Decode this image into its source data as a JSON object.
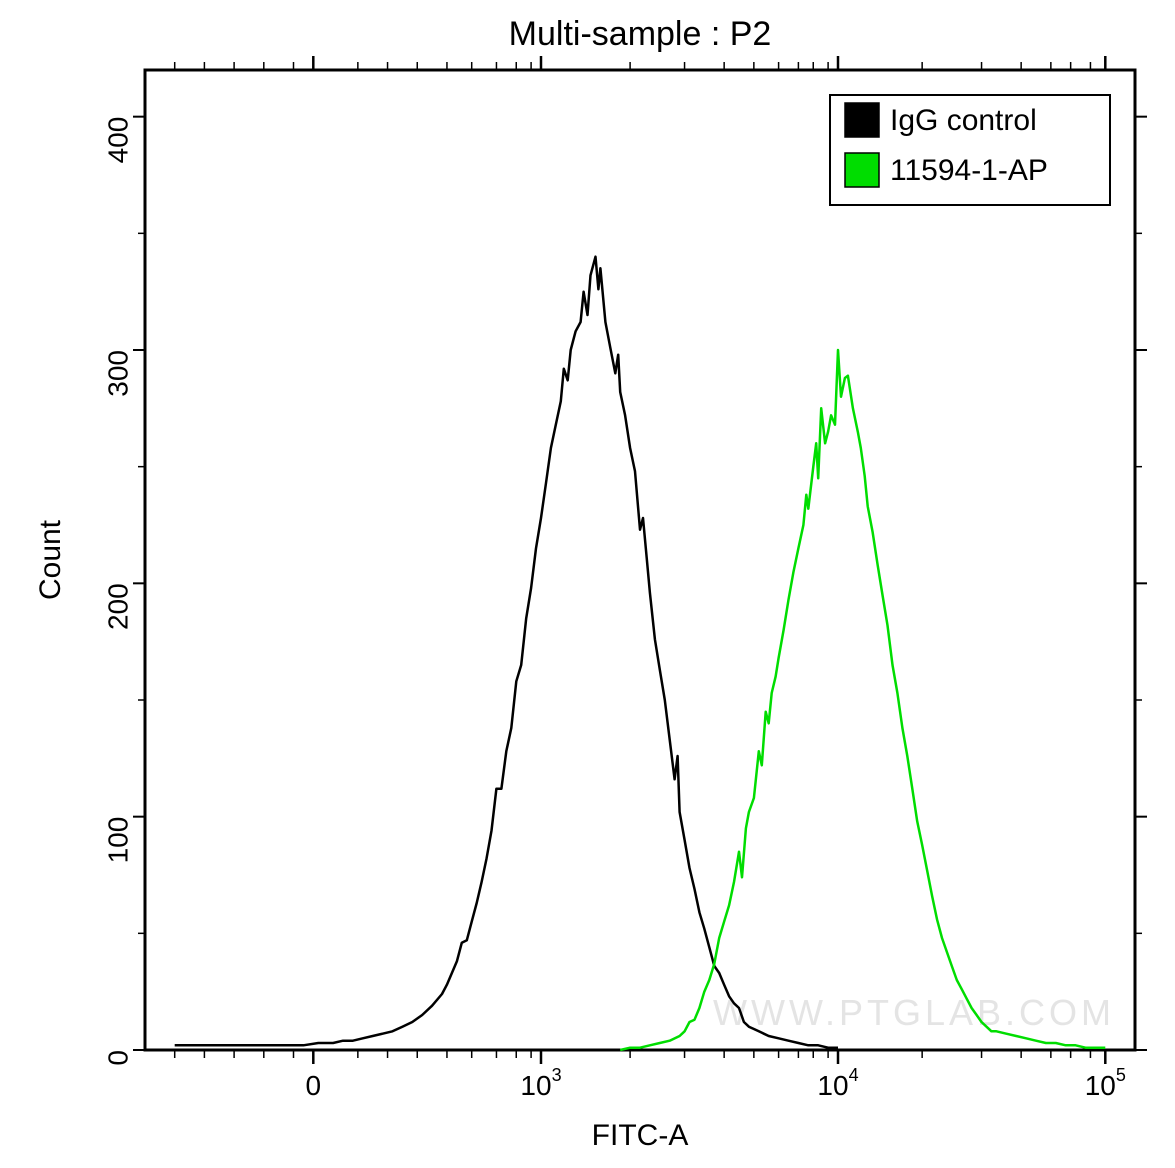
{
  "chart": {
    "type": "histogram-overlay",
    "title": "Multi-sample : P2",
    "title_fontsize": 34,
    "title_color": "#000000",
    "background_color": "#ffffff",
    "plot_border_color": "#000000",
    "plot_border_width": 3,
    "x_axis": {
      "label": "FITC-A",
      "label_fontsize": 30,
      "scale": "biexponential-log",
      "ticks": [
        {
          "value": 0,
          "label": "0",
          "pos": 0.17
        },
        {
          "value": 1000,
          "label": "10",
          "exp": "3",
          "pos": 0.4
        },
        {
          "value": 10000,
          "label": "10",
          "exp": "4",
          "pos": 0.7
        },
        {
          "value": 100000,
          "label": "10",
          "exp": "5",
          "pos": 0.97
        }
      ],
      "minor_ticks_positions": [
        0.03,
        0.06,
        0.09,
        0.12,
        0.15,
        0.215,
        0.245,
        0.275,
        0.305,
        0.33,
        0.355,
        0.375,
        0.39,
        0.49,
        0.545,
        0.585,
        0.615,
        0.64,
        0.66,
        0.675,
        0.69,
        0.785,
        0.845,
        0.885,
        0.915,
        0.935,
        0.955
      ]
    },
    "y_axis": {
      "label": "Count",
      "label_fontsize": 30,
      "scale": "linear",
      "min": 0,
      "max": 420,
      "tick_step": 100,
      "ticks": [
        {
          "value": 0,
          "label": "0"
        },
        {
          "value": 100,
          "label": "100"
        },
        {
          "value": 200,
          "label": "200"
        },
        {
          "value": 300,
          "label": "300"
        },
        {
          "value": 400,
          "label": "400"
        }
      ]
    },
    "series": [
      {
        "name": "IgG control",
        "color": "#000000",
        "line_width": 2.5,
        "swatch_fill": "#000000",
        "data": [
          [
            0.03,
            2
          ],
          [
            0.05,
            2
          ],
          [
            0.08,
            2
          ],
          [
            0.1,
            2
          ],
          [
            0.12,
            2
          ],
          [
            0.14,
            2
          ],
          [
            0.16,
            2
          ],
          [
            0.175,
            3
          ],
          [
            0.19,
            3
          ],
          [
            0.2,
            4
          ],
          [
            0.21,
            4
          ],
          [
            0.22,
            5
          ],
          [
            0.23,
            6
          ],
          [
            0.24,
            7
          ],
          [
            0.25,
            8
          ],
          [
            0.26,
            10
          ],
          [
            0.27,
            12
          ],
          [
            0.28,
            15
          ],
          [
            0.29,
            19
          ],
          [
            0.3,
            24
          ],
          [
            0.305,
            28
          ],
          [
            0.31,
            33
          ],
          [
            0.315,
            38
          ],
          [
            0.32,
            46
          ],
          [
            0.325,
            47
          ],
          [
            0.33,
            55
          ],
          [
            0.335,
            63
          ],
          [
            0.34,
            72
          ],
          [
            0.345,
            82
          ],
          [
            0.35,
            94
          ],
          [
            0.355,
            112
          ],
          [
            0.36,
            112
          ],
          [
            0.365,
            128
          ],
          [
            0.37,
            138
          ],
          [
            0.375,
            158
          ],
          [
            0.38,
            165
          ],
          [
            0.385,
            185
          ],
          [
            0.39,
            198
          ],
          [
            0.395,
            215
          ],
          [
            0.4,
            228
          ],
          [
            0.405,
            243
          ],
          [
            0.41,
            258
          ],
          [
            0.415,
            268
          ],
          [
            0.42,
            278
          ],
          [
            0.423,
            292
          ],
          [
            0.427,
            287
          ],
          [
            0.43,
            300
          ],
          [
            0.435,
            308
          ],
          [
            0.44,
            312
          ],
          [
            0.443,
            325
          ],
          [
            0.447,
            315
          ],
          [
            0.45,
            332
          ],
          [
            0.455,
            340
          ],
          [
            0.458,
            326
          ],
          [
            0.46,
            335
          ],
          [
            0.465,
            312
          ],
          [
            0.47,
            301
          ],
          [
            0.475,
            290
          ],
          [
            0.478,
            298
          ],
          [
            0.48,
            282
          ],
          [
            0.485,
            272
          ],
          [
            0.49,
            258
          ],
          [
            0.495,
            248
          ],
          [
            0.5,
            223
          ],
          [
            0.503,
            228
          ],
          [
            0.507,
            210
          ],
          [
            0.51,
            196
          ],
          [
            0.515,
            176
          ],
          [
            0.52,
            163
          ],
          [
            0.525,
            150
          ],
          [
            0.53,
            133
          ],
          [
            0.535,
            116
          ],
          [
            0.538,
            126
          ],
          [
            0.54,
            102
          ],
          [
            0.545,
            90
          ],
          [
            0.55,
            78
          ],
          [
            0.555,
            69
          ],
          [
            0.56,
            59
          ],
          [
            0.565,
            52
          ],
          [
            0.57,
            44
          ],
          [
            0.575,
            36
          ],
          [
            0.58,
            33
          ],
          [
            0.585,
            28
          ],
          [
            0.59,
            23
          ],
          [
            0.595,
            20
          ],
          [
            0.6,
            18
          ],
          [
            0.605,
            12
          ],
          [
            0.61,
            10
          ],
          [
            0.615,
            9
          ],
          [
            0.62,
            8
          ],
          [
            0.63,
            6
          ],
          [
            0.64,
            5
          ],
          [
            0.65,
            4
          ],
          [
            0.66,
            3
          ],
          [
            0.67,
            2
          ],
          [
            0.68,
            2
          ],
          [
            0.69,
            1
          ],
          [
            0.7,
            1
          ]
        ]
      },
      {
        "name": "11594-1-AP",
        "color": "#00dd00",
        "line_width": 2.5,
        "swatch_fill": "#00dd00",
        "data": [
          [
            0.48,
            0
          ],
          [
            0.49,
            1
          ],
          [
            0.5,
            1
          ],
          [
            0.51,
            2
          ],
          [
            0.52,
            3
          ],
          [
            0.53,
            4
          ],
          [
            0.54,
            6
          ],
          [
            0.545,
            8
          ],
          [
            0.55,
            12
          ],
          [
            0.555,
            13
          ],
          [
            0.56,
            18
          ],
          [
            0.565,
            25
          ],
          [
            0.57,
            30
          ],
          [
            0.575,
            37
          ],
          [
            0.58,
            48
          ],
          [
            0.585,
            55
          ],
          [
            0.59,
            62
          ],
          [
            0.595,
            72
          ],
          [
            0.6,
            85
          ],
          [
            0.603,
            74
          ],
          [
            0.607,
            95
          ],
          [
            0.61,
            102
          ],
          [
            0.615,
            108
          ],
          [
            0.62,
            128
          ],
          [
            0.623,
            122
          ],
          [
            0.627,
            145
          ],
          [
            0.63,
            140
          ],
          [
            0.633,
            153
          ],
          [
            0.637,
            160
          ],
          [
            0.64,
            168
          ],
          [
            0.645,
            180
          ],
          [
            0.65,
            193
          ],
          [
            0.655,
            205
          ],
          [
            0.66,
            215
          ],
          [
            0.665,
            225
          ],
          [
            0.668,
            238
          ],
          [
            0.67,
            232
          ],
          [
            0.675,
            250
          ],
          [
            0.678,
            260
          ],
          [
            0.68,
            245
          ],
          [
            0.683,
            275
          ],
          [
            0.687,
            260
          ],
          [
            0.69,
            265
          ],
          [
            0.693,
            272
          ],
          [
            0.697,
            268
          ],
          [
            0.7,
            300
          ],
          [
            0.703,
            280
          ],
          [
            0.707,
            288
          ],
          [
            0.71,
            289
          ],
          [
            0.715,
            275
          ],
          [
            0.72,
            265
          ],
          [
            0.723,
            258
          ],
          [
            0.727,
            246
          ],
          [
            0.73,
            233
          ],
          [
            0.735,
            222
          ],
          [
            0.74,
            208
          ],
          [
            0.745,
            195
          ],
          [
            0.75,
            182
          ],
          [
            0.755,
            165
          ],
          [
            0.76,
            153
          ],
          [
            0.765,
            138
          ],
          [
            0.77,
            126
          ],
          [
            0.775,
            112
          ],
          [
            0.78,
            98
          ],
          [
            0.785,
            88
          ],
          [
            0.79,
            77
          ],
          [
            0.795,
            66
          ],
          [
            0.8,
            56
          ],
          [
            0.805,
            48
          ],
          [
            0.81,
            42
          ],
          [
            0.815,
            36
          ],
          [
            0.82,
            30
          ],
          [
            0.825,
            26
          ],
          [
            0.83,
            22
          ],
          [
            0.835,
            18
          ],
          [
            0.84,
            15
          ],
          [
            0.845,
            12
          ],
          [
            0.85,
            10
          ],
          [
            0.855,
            8
          ],
          [
            0.86,
            8
          ],
          [
            0.87,
            7
          ],
          [
            0.88,
            6
          ],
          [
            0.89,
            5
          ],
          [
            0.9,
            4
          ],
          [
            0.91,
            3
          ],
          [
            0.92,
            3
          ],
          [
            0.93,
            2
          ],
          [
            0.94,
            2
          ],
          [
            0.95,
            1
          ],
          [
            0.96,
            1
          ],
          [
            0.97,
            1
          ]
        ]
      }
    ],
    "legend": {
      "position": "top-right",
      "border_color": "#000000",
      "background": "#ffffff",
      "item_fontsize": 30
    },
    "watermark": "WWW.PTGLAB.COM",
    "watermark_color": "#e4e4e4"
  }
}
